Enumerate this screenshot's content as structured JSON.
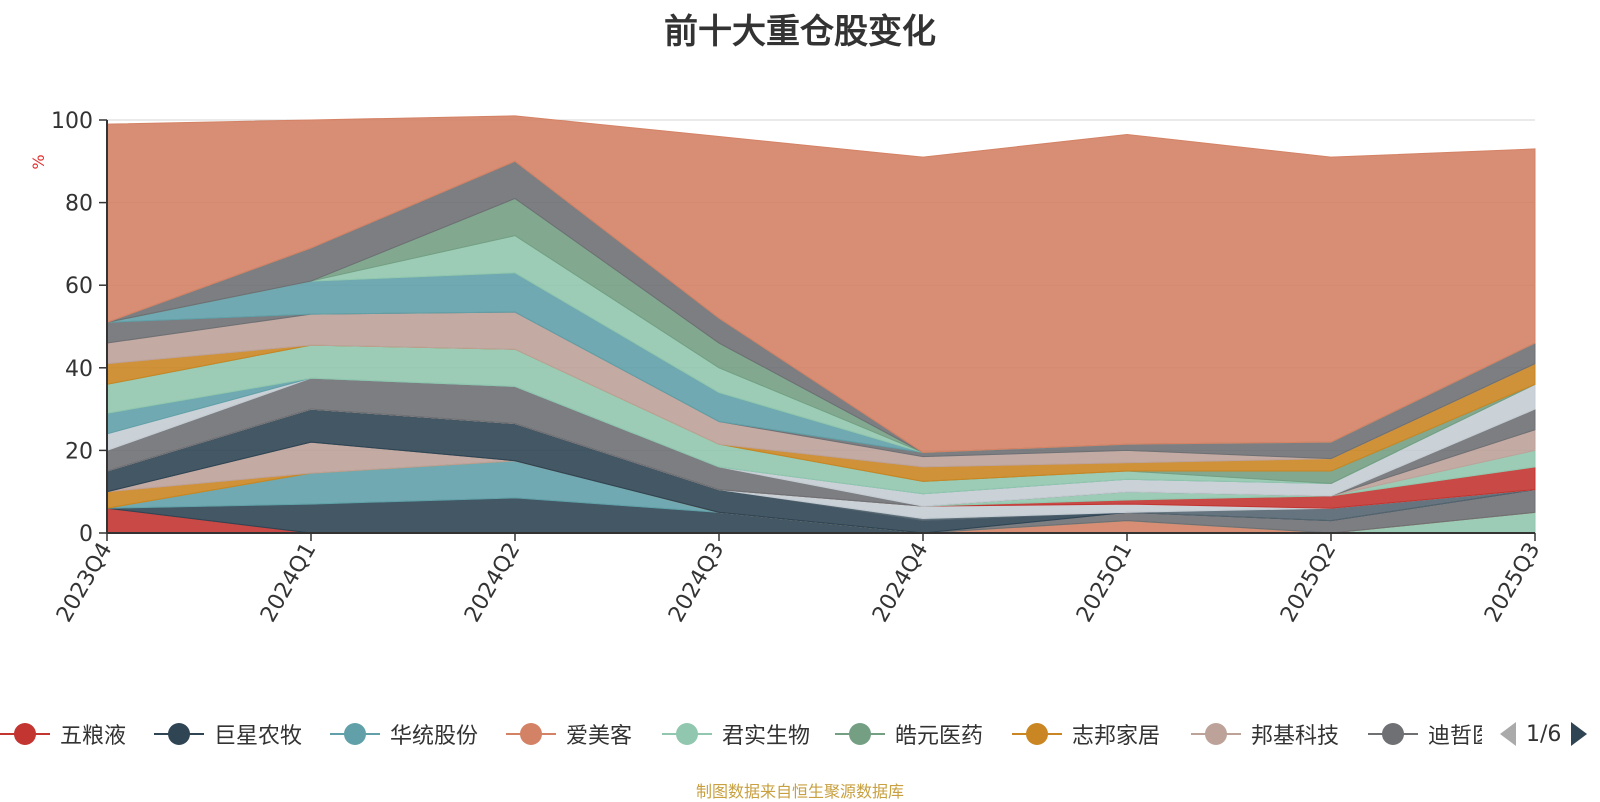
{
  "title": "前十大重仓股变化",
  "source_note": "制图数据来自恒生聚源数据库",
  "legend_pager": {
    "text": "1/6"
  },
  "chart_data": {
    "type": "area",
    "stacked": true,
    "categories": [
      "2023Q4",
      "2024Q1",
      "2024Q2",
      "2024Q3",
      "2024Q4",
      "2025Q1",
      "2025Q2",
      "2025Q3"
    ],
    "ylabel": "%",
    "ylim": [
      0,
      100
    ],
    "yticks": [
      0,
      20,
      40,
      60,
      80,
      100
    ],
    "grid": true,
    "legend_placement": "bottom",
    "series": [
      {
        "name": "五粮液",
        "color": "#c23531",
        "values": [
          6,
          0,
          0,
          0,
          0,
          0,
          0,
          0
        ]
      },
      {
        "name": "巨星农牧",
        "color": "#2f4554",
        "values": [
          0,
          7,
          8.5,
          5,
          0,
          0,
          0,
          0
        ]
      },
      {
        "name": "华统股份",
        "color": "#61a0a8",
        "values": [
          0,
          7.5,
          9,
          0,
          0,
          0,
          0,
          0
        ]
      },
      {
        "name": "爱美客",
        "color": "#d48265",
        "values": [
          0,
          0,
          0,
          0,
          0,
          3,
          0,
          0
        ]
      },
      {
        "name": "君实生物",
        "color": "#91c7ae",
        "values": [
          0,
          0,
          0,
          0,
          0,
          0,
          0,
          5
        ]
      },
      {
        "name": "皓元医药",
        "color": "#749f83",
        "values": [
          0,
          0,
          0,
          0,
          0,
          0,
          0,
          0
        ]
      },
      {
        "name": "志邦家居",
        "color": "#ca8622",
        "values": [
          4,
          0,
          0,
          0,
          0,
          0,
          0,
          0
        ]
      },
      {
        "name": "邦基科技",
        "color": "#bda29a",
        "values": [
          0,
          7.5,
          0,
          0,
          0,
          0,
          0,
          0
        ]
      },
      {
        "name": "迪哲医药",
        "color": "#6e7074",
        "values": [
          0,
          0,
          0,
          0,
          0,
          2,
          3,
          5.5
        ]
      }
    ],
    "other_bands": [
      {
        "color": "#2f4554",
        "values": [
          5,
          8,
          9,
          5.5,
          3,
          0,
          0,
          0
        ]
      },
      {
        "color": "#546570",
        "values": [
          0,
          0,
          0,
          0,
          0.5,
          0,
          3,
          0
        ]
      },
      {
        "color": "#c4ccd3",
        "values": [
          0,
          0,
          0,
          0,
          3,
          2,
          0,
          0
        ]
      },
      {
        "color": "#c23531",
        "values": [
          0,
          0,
          0,
          0,
          0,
          1,
          3,
          5.5
        ]
      },
      {
        "color": "#91c7ae",
        "values": [
          0,
          0,
          0,
          0,
          0,
          2,
          0,
          4
        ]
      },
      {
        "color": "#bda29a",
        "values": [
          0,
          0,
          0,
          0,
          0,
          0,
          0,
          5
        ]
      },
      {
        "color": "#6e7074",
        "values": [
          5,
          7.5,
          9,
          5.5,
          0,
          0,
          0,
          5
        ]
      },
      {
        "color": "#c4ccd3",
        "values": [
          4,
          0,
          0,
          0,
          3,
          3,
          3,
          6
        ]
      },
      {
        "color": "#61a0a8",
        "values": [
          5,
          0,
          0,
          0,
          0,
          0,
          0,
          0
        ]
      },
      {
        "color": "#91c7ae",
        "values": [
          7,
          8,
          9,
          5.5,
          3,
          2,
          0,
          0
        ]
      },
      {
        "color": "#749f83",
        "values": [
          0,
          0,
          0,
          0,
          0,
          0,
          3,
          0
        ]
      },
      {
        "color": "#ca8622",
        "values": [
          5,
          0,
          0,
          0,
          3.5,
          2,
          3,
          5
        ]
      },
      {
        "color": "#bda29a",
        "values": [
          5,
          7.5,
          9,
          5.5,
          2.5,
          3,
          0,
          0
        ]
      },
      {
        "color": "#6e7074",
        "values": [
          5,
          0,
          0,
          0,
          1,
          1.5,
          4,
          5
        ]
      },
      {
        "color": "#61a0a8",
        "values": [
          0,
          8,
          9.5,
          7,
          0,
          0,
          0,
          0
        ]
      },
      {
        "color": "#91c7ae",
        "values": [
          0,
          0,
          9,
          6,
          0,
          0,
          0,
          0
        ]
      },
      {
        "color": "#749f83",
        "values": [
          0,
          0,
          9,
          6,
          0,
          0,
          0,
          0
        ]
      },
      {
        "color": "#6e7074",
        "values": [
          0,
          8,
          9,
          6,
          0,
          0,
          0,
          0
        ]
      },
      {
        "color": "#61a0a8",
        "values": [
          0,
          0,
          0,
          0,
          0,
          0,
          0,
          0
        ]
      },
      {
        "color": "#d48265",
        "values": [
          48,
          31,
          11,
          44,
          71.5,
          75,
          69,
          47
        ]
      }
    ]
  }
}
